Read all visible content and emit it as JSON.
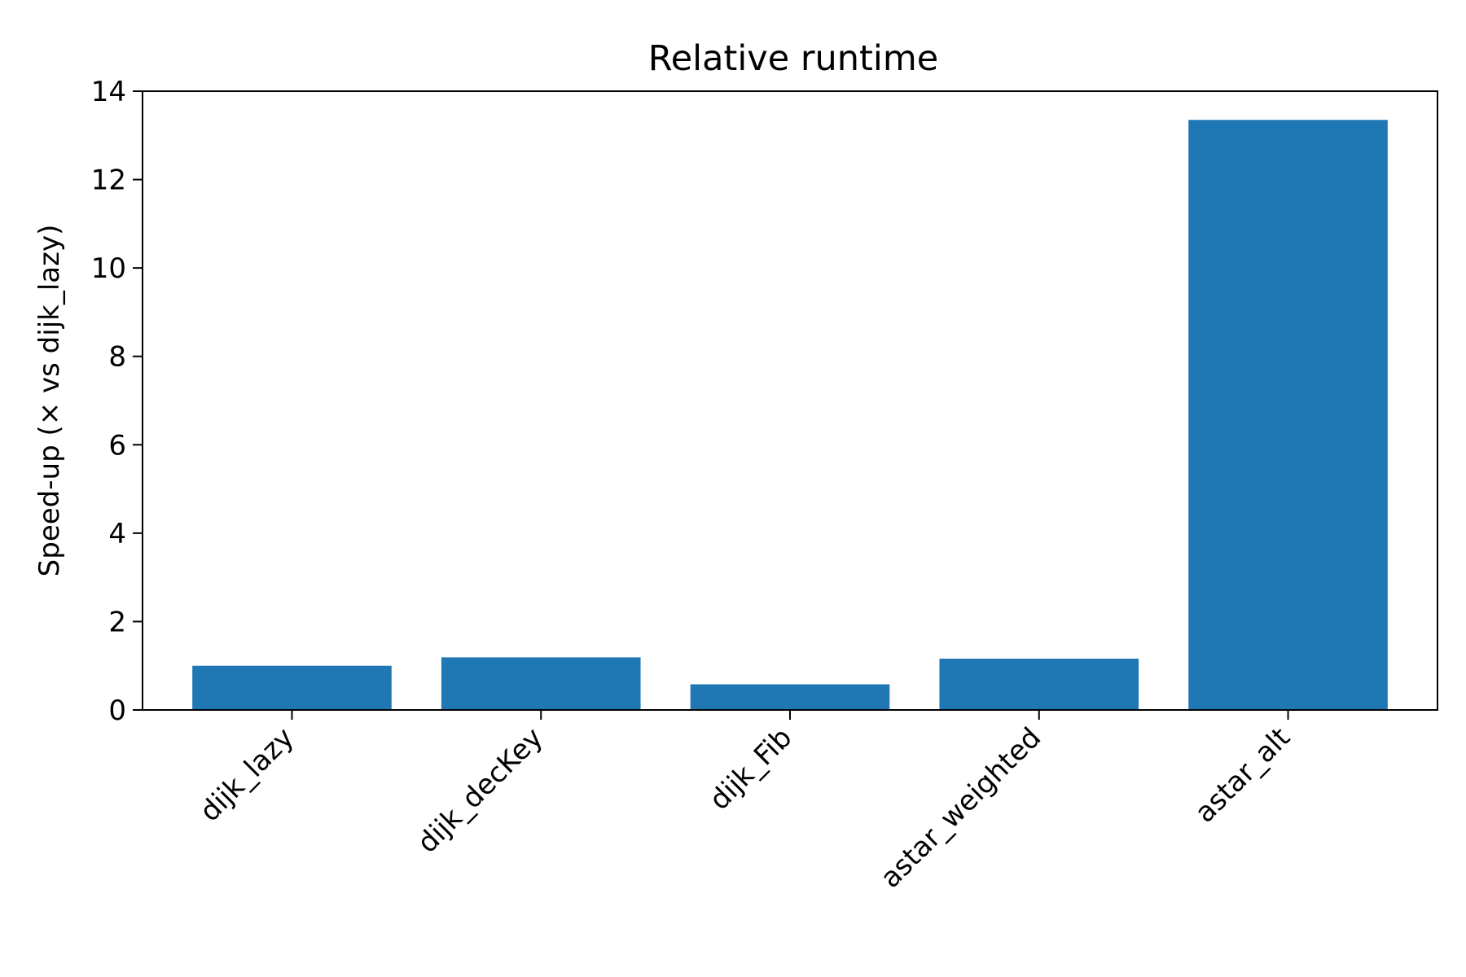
{
  "chart_data": {
    "type": "bar",
    "title": "Relative runtime",
    "xlabel": "",
    "ylabel": "Speed-up (× vs dijk_lazy)",
    "categories": [
      "dijk_lazy",
      "dijk_decKey",
      "dijk_Fib",
      "astar_weighted",
      "astar_alt"
    ],
    "values": [
      1.0,
      1.19,
      0.58,
      1.16,
      13.35
    ],
    "ylim": [
      0,
      14
    ],
    "yticks": [
      0,
      2,
      4,
      6,
      8,
      10,
      12,
      14
    ],
    "bar_color": "#1f77b4",
    "grid": false,
    "legend": "none"
  }
}
